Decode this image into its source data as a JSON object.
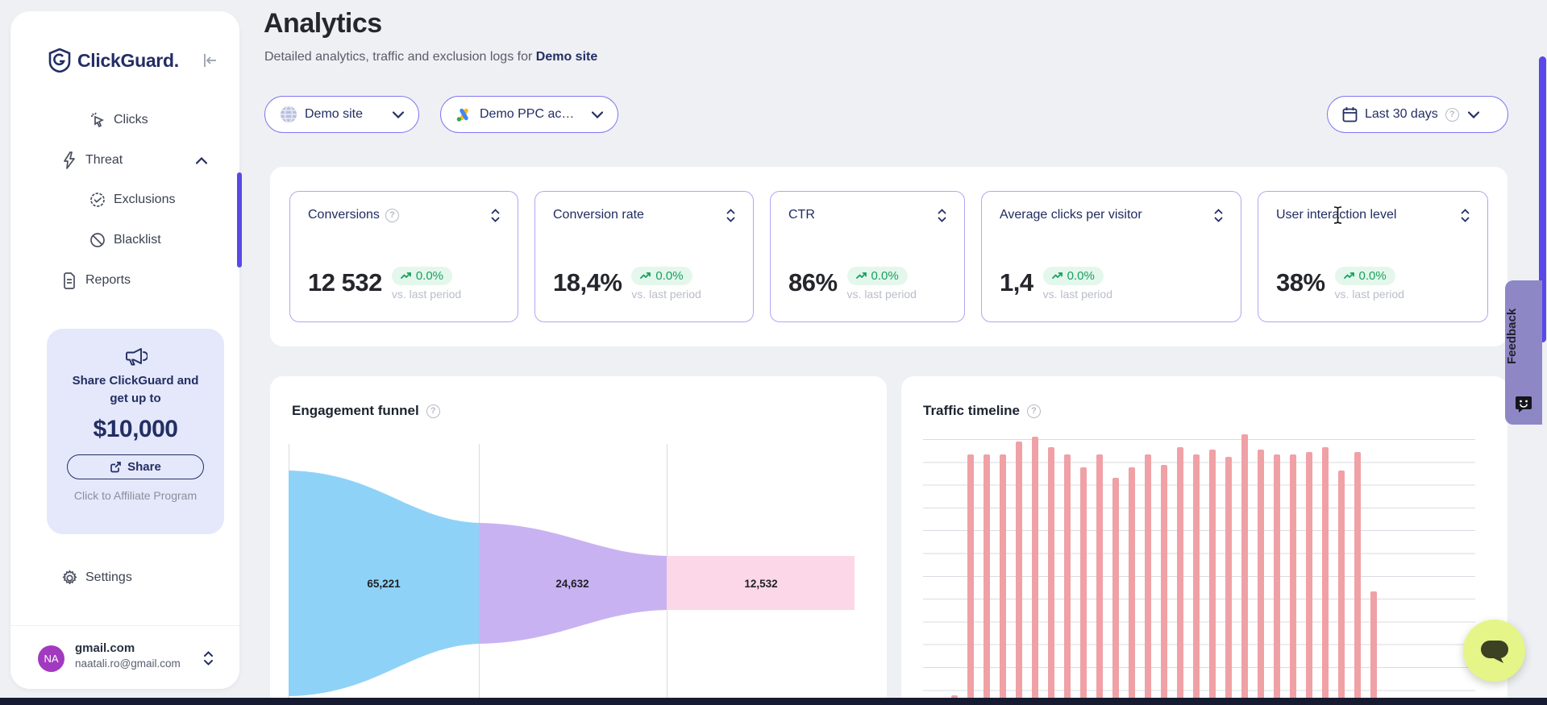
{
  "app": {
    "name": "ClickGuard."
  },
  "sidebar": {
    "nav": [
      {
        "label": "Clicks"
      },
      {
        "label": "Threat"
      },
      {
        "label": "Exclusions"
      },
      {
        "label": "Blacklist"
      },
      {
        "label": "Reports"
      },
      {
        "label": "Settings"
      }
    ],
    "promo": {
      "line1": "Share ClickGuard and",
      "line2": "get up to",
      "amount": "$10,000",
      "share_label": "Share",
      "affiliate_label": "Click to Affiliate Program"
    },
    "user": {
      "initials": "NA",
      "name": "gmail.com",
      "email": "naatali.ro@gmail.com"
    }
  },
  "header": {
    "title": "Analytics",
    "subtitle_prefix": "Detailed analytics, traffic and exclusion logs for ",
    "subtitle_target": "Demo site"
  },
  "filters": {
    "site": "Demo site",
    "ppc_account": "Demo PPC ac…",
    "date_range": "Last 30 days"
  },
  "stats": {
    "cards": [
      {
        "label": "Conversions",
        "value": "12 532",
        "change": "0.0%",
        "caption": "vs. last period"
      },
      {
        "label": "Conversion rate",
        "value": "18,4%",
        "change": "0.0%",
        "caption": "vs. last period"
      },
      {
        "label": "CTR",
        "value": "86%",
        "change": "0.0%",
        "caption": "vs. last period"
      },
      {
        "label": "Average clicks per visitor",
        "value": "1,4",
        "change": "0.0%",
        "caption": "vs. last period"
      },
      {
        "label": "User interaction level",
        "value": "38%",
        "change": "0.0%",
        "caption": "vs. last period"
      }
    ],
    "badge_color": "#18a05e"
  },
  "funnel": {
    "title": "Engagement funnel",
    "chart_data": {
      "type": "funnel",
      "stages": [
        {
          "value": 65221,
          "value_label": "65,221",
          "color": "#8fd2f7"
        },
        {
          "value": 24632,
          "value_label": "24,632",
          "color": "#c9b2f2"
        },
        {
          "value": 12532,
          "value_label": "12,532",
          "color": "#fcd7e7"
        }
      ],
      "gridlines": "3 vertical stage separators",
      "note": "funnel tapers left to right, vertically centered; bottom cropped by viewport"
    }
  },
  "timeline": {
    "title": "Traffic timeline",
    "chart_data": {
      "type": "bar",
      "bar_color": "#f0a1a6",
      "values": [
        1,
        94,
        94,
        94,
        99,
        101,
        97,
        94,
        89,
        94,
        85,
        89,
        94,
        90,
        97,
        94,
        96,
        93,
        102,
        96,
        94,
        94,
        95,
        97,
        88,
        95,
        41
      ],
      "x": "daily buckets over selected period (tick labels not visible)",
      "ylabel": "",
      "grid": "horizontal gridlines every ~9% of visible plot",
      "note": "values are visible bar heights in % of plot; chart bottom and axis labels cropped by viewport"
    }
  },
  "feedback": {
    "label": "Feedback"
  }
}
